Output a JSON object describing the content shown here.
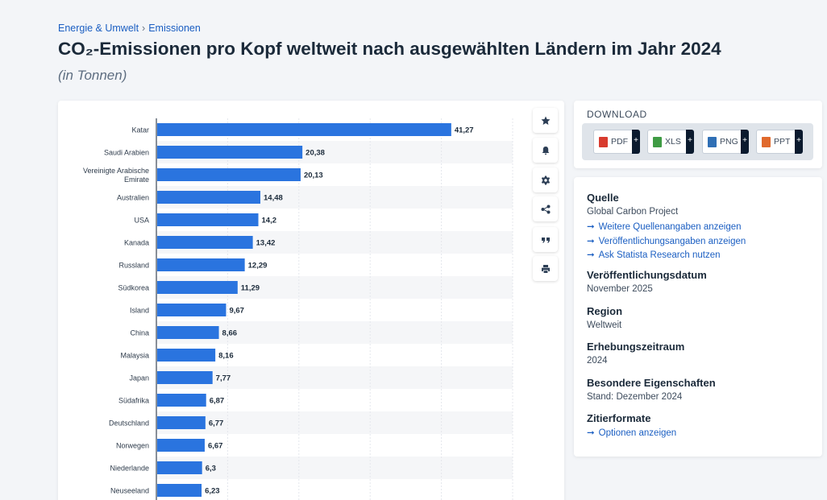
{
  "breadcrumb": {
    "item1": "Energie & Umwelt",
    "separator": "›",
    "item2": "Emissionen"
  },
  "title": "CO₂-Emissionen pro Kopf weltweit nach ausgewählten Ländern im Jahr 2024",
  "subtitle": "(in Tonnen)",
  "toolbar": {
    "icons": [
      "star-icon",
      "bell-icon",
      "gear-icon",
      "share-icon",
      "quote-icon",
      "print-icon"
    ]
  },
  "download": {
    "title": "DOWNLOAD",
    "formats": [
      {
        "label": "PDF",
        "color": "#d83b2e",
        "plus": "+"
      },
      {
        "label": "XLS",
        "color": "#3f9b44",
        "plus": "+"
      },
      {
        "label": "PNG",
        "color": "#2f6fb5",
        "plus": "+"
      },
      {
        "label": "PPT",
        "color": "#e0692c",
        "plus": "+"
      }
    ]
  },
  "info": {
    "source_heading": "Quelle",
    "source_value": "Global Carbon Project",
    "arrow": "➞",
    "link_more_sources": "Weitere Quellenangaben anzeigen",
    "link_publication": "Veröffentlichungsangaben anzeigen",
    "link_research": "Ask Statista Research nutzen",
    "pubdate_heading": "Veröffentlichungsdatum",
    "pubdate_value": "November 2025",
    "region_heading": "Region",
    "region_value": "Weltweit",
    "period_heading": "Erhebungszeitraum",
    "period_value": "2024",
    "special_heading": "Besondere Eigenschaften",
    "special_value": "Stand: Dezember 2024",
    "cite_heading": "Zitierformate",
    "cite_link": "Optionen anzeigen"
  },
  "colors": {
    "bar": "#2a74df",
    "link": "#1a5ec2"
  },
  "chart_data": {
    "type": "bar",
    "orientation": "horizontal",
    "title": "CO₂-Emissionen pro Kopf weltweit nach ausgewählten Ländern im Jahr 2024",
    "xlabel": "",
    "ylabel": "",
    "unit": "Tonnen",
    "xlim": [
      0,
      50
    ],
    "grid": true,
    "categories": [
      "Katar",
      "Saudi Arabien",
      "Vereinigte Arabische Emirate",
      "Australien",
      "USA",
      "Kanada",
      "Russland",
      "Südkorea",
      "Island",
      "China",
      "Malaysia",
      "Japan",
      "Südafrika",
      "Deutschland",
      "Norwegen",
      "Niederlande",
      "Neuseeland"
    ],
    "category_lines": [
      [
        "Katar"
      ],
      [
        "Saudi Arabien"
      ],
      [
        "Vereinigte Arabische",
        "Emirate"
      ],
      [
        "Australien"
      ],
      [
        "USA"
      ],
      [
        "Kanada"
      ],
      [
        "Russland"
      ],
      [
        "Südkorea"
      ],
      [
        "Island"
      ],
      [
        "China"
      ],
      [
        "Malaysia"
      ],
      [
        "Japan"
      ],
      [
        "Südafrika"
      ],
      [
        "Deutschland"
      ],
      [
        "Norwegen"
      ],
      [
        "Niederlande"
      ],
      [
        "Neuseeland"
      ]
    ],
    "values": [
      41.27,
      20.38,
      20.13,
      14.48,
      14.2,
      13.42,
      12.29,
      11.29,
      9.67,
      8.66,
      8.16,
      7.77,
      6.87,
      6.77,
      6.67,
      6.3,
      6.23
    ],
    "value_labels": [
      "41,27",
      "20,38",
      "20,13",
      "14,48",
      "14,2",
      "13,42",
      "12,29",
      "11,29",
      "9,67",
      "8,66",
      "8,16",
      "7,77",
      "6,87",
      "6,77",
      "6,67",
      "6,3",
      "6,23"
    ]
  }
}
